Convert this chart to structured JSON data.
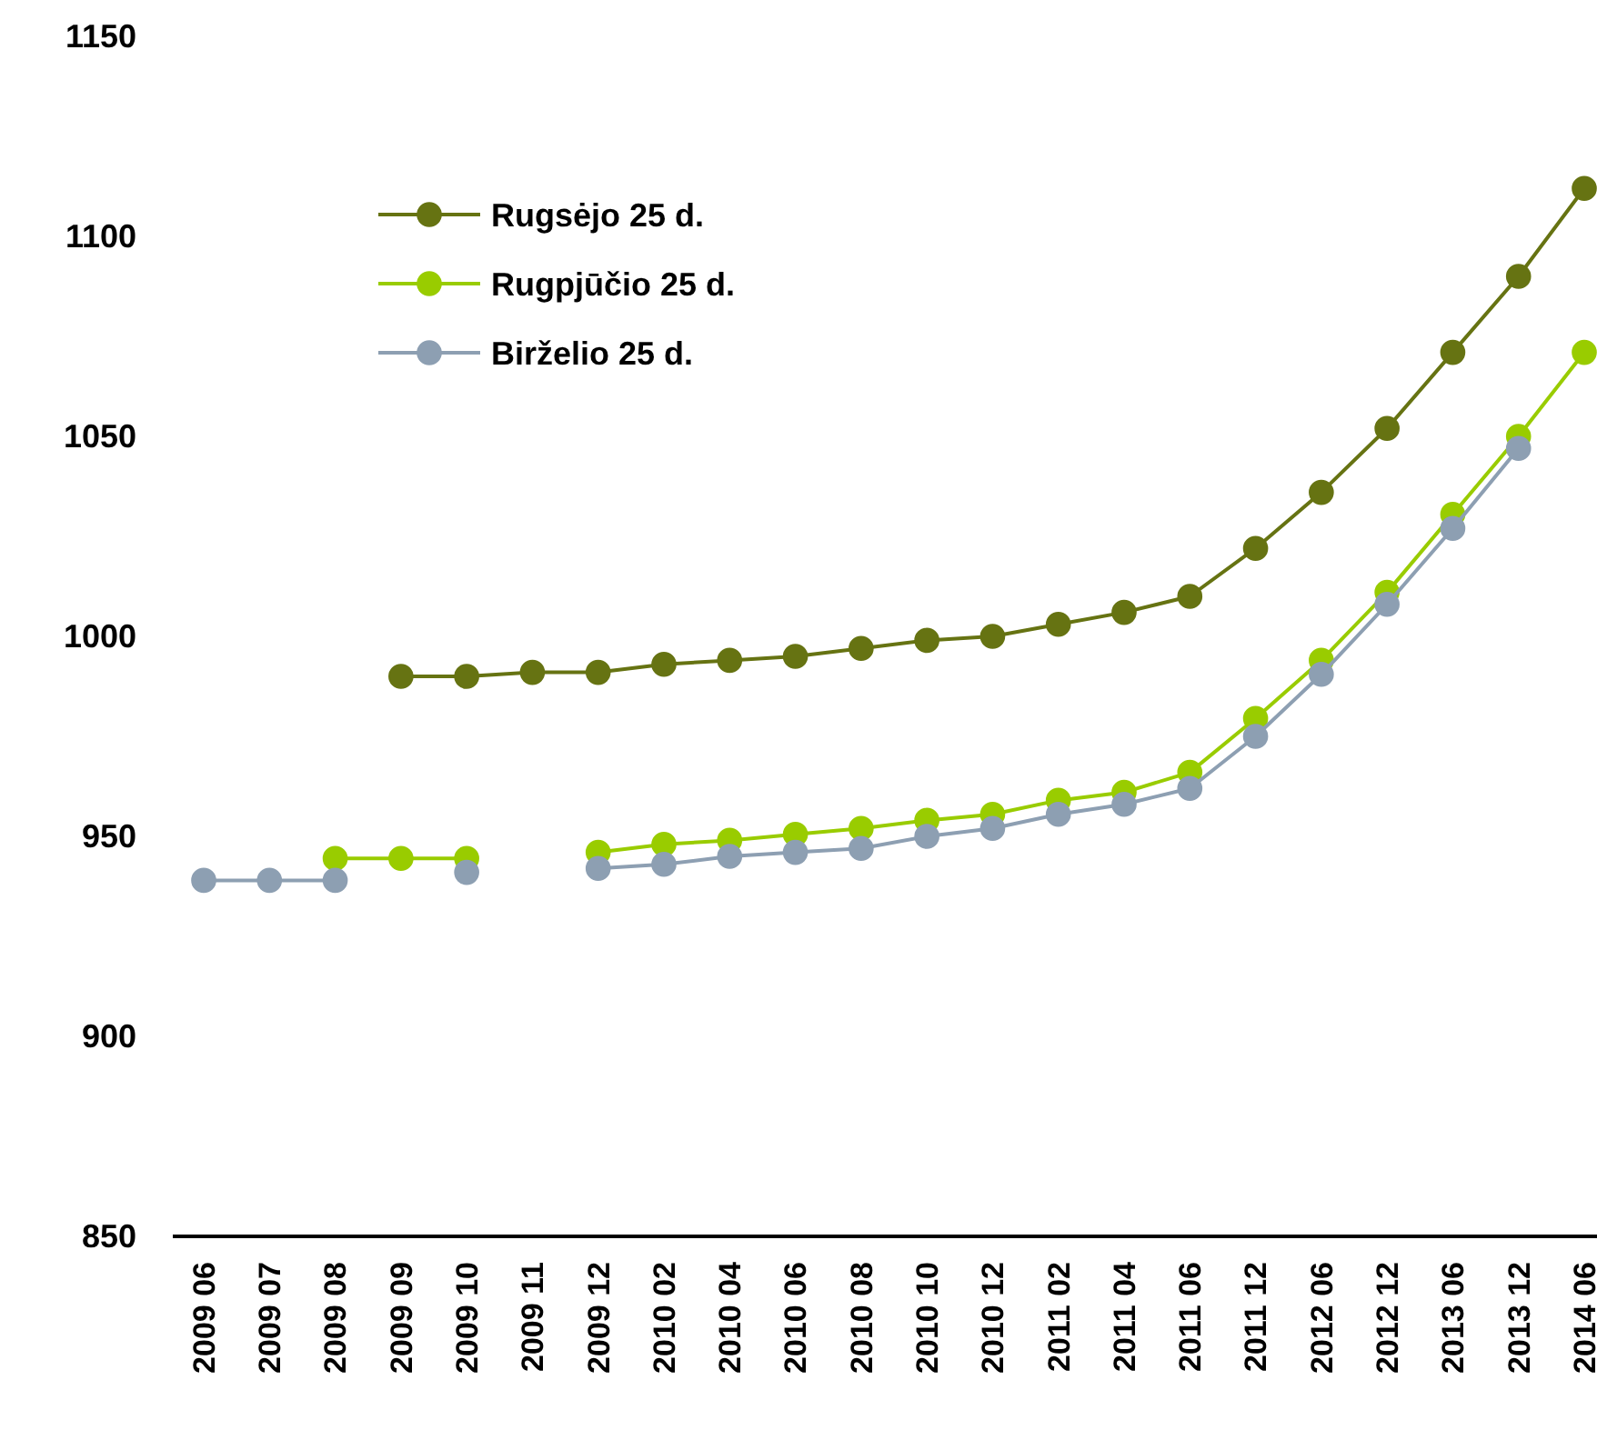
{
  "chart_data": {
    "type": "line",
    "categories": [
      "2009 06",
      "2009 07",
      "2009 08",
      "2009 09",
      "2009 10",
      "2009 11",
      "2009 12",
      "2010 02",
      "2010 04",
      "2010 06",
      "2010 08",
      "2010 10",
      "2010 12",
      "2011 02",
      "2011 04",
      "2011 06",
      "2011 12",
      "2012 06",
      "2012 12",
      "2013 06",
      "2013 12",
      "2014 06"
    ],
    "series": [
      {
        "name": "Rugsėjo 25 d.",
        "color": "#667312",
        "values": [
          null,
          null,
          null,
          990,
          990,
          991,
          991,
          993,
          994,
          995,
          997,
          999,
          1000,
          1003,
          1006,
          1010,
          1022,
          1036,
          1052,
          1071,
          1090,
          1112
        ]
      },
      {
        "name": "Rugpjūčio 25 d.",
        "color": "#99cc00",
        "values": [
          null,
          null,
          944.5,
          944.5,
          944.5,
          null,
          946,
          948,
          949,
          950.5,
          952,
          954,
          955.5,
          959,
          961,
          966,
          979.5,
          994,
          1011,
          1030.5,
          1050,
          1071
        ]
      },
      {
        "name": "Birželio 25 d.",
        "color": "#8d9fb2",
        "values": [
          939,
          939,
          939,
          null,
          941,
          null,
          942,
          943,
          945,
          946,
          947,
          950,
          952,
          955.5,
          958,
          962,
          975,
          990.5,
          1008,
          1027,
          1047,
          null
        ]
      }
    ],
    "ylim": [
      850,
      1150
    ],
    "yticks": [
      850,
      900,
      950,
      1000,
      1050,
      1100,
      1150
    ],
    "grid": false,
    "legend": "top left",
    "marker": "circle",
    "line_style": "solid"
  }
}
